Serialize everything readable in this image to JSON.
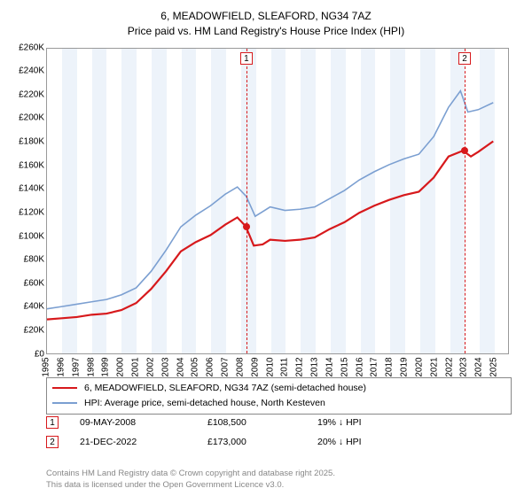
{
  "title": {
    "line1": "6, MEADOWFIELD, SLEAFORD, NG34 7AZ",
    "line2": "Price paid vs. HM Land Registry's House Price Index (HPI)",
    "fontsize": 12,
    "color": "#000000"
  },
  "chart": {
    "type": "line",
    "background_color": "#ffffff",
    "plot_border_color": "#999999",
    "band_color": "#edf3fa",
    "x": {
      "min": 1995,
      "max": 2026,
      "ticks": [
        1995,
        1996,
        1997,
        1998,
        1999,
        2000,
        2001,
        2002,
        2003,
        2004,
        2005,
        2006,
        2007,
        2008,
        2009,
        2010,
        2011,
        2012,
        2013,
        2014,
        2015,
        2016,
        2017,
        2018,
        2019,
        2020,
        2021,
        2022,
        2023,
        2024,
        2025
      ],
      "label_fontsize": 10
    },
    "y": {
      "min": 0,
      "max": 260000,
      "ticks": [
        0,
        20000,
        40000,
        60000,
        80000,
        100000,
        120000,
        140000,
        160000,
        180000,
        200000,
        220000,
        240000,
        260000
      ],
      "tick_labels": [
        "£0",
        "£20K",
        "£40K",
        "£60K",
        "£80K",
        "£100K",
        "£120K",
        "£140K",
        "£160K",
        "£180K",
        "£200K",
        "£220K",
        "£240K",
        "£260K"
      ],
      "label_fontsize": 10
    },
    "bands_starting_odd_years": true,
    "series": [
      {
        "name": "price_paid",
        "label": "6, MEADOWFIELD, SLEAFORD, NG34 7AZ (semi-detached house)",
        "color": "#d7191c",
        "line_width": 2.2,
        "points": [
          [
            1995,
            29000
          ],
          [
            1996,
            30000
          ],
          [
            1997,
            31000
          ],
          [
            1998,
            33000
          ],
          [
            1999,
            34000
          ],
          [
            2000,
            37000
          ],
          [
            2001,
            43000
          ],
          [
            2002,
            55000
          ],
          [
            2003,
            70000
          ],
          [
            2004,
            87000
          ],
          [
            2005,
            95000
          ],
          [
            2006,
            101000
          ],
          [
            2007,
            110000
          ],
          [
            2007.8,
            116000
          ],
          [
            2008.36,
            108500
          ],
          [
            2008.9,
            92000
          ],
          [
            2009.5,
            93000
          ],
          [
            2010,
            97000
          ],
          [
            2011,
            96000
          ],
          [
            2012,
            97000
          ],
          [
            2013,
            99000
          ],
          [
            2014,
            106000
          ],
          [
            2015,
            112000
          ],
          [
            2016,
            120000
          ],
          [
            2017,
            126000
          ],
          [
            2018,
            131000
          ],
          [
            2019,
            135000
          ],
          [
            2020,
            138000
          ],
          [
            2021,
            150000
          ],
          [
            2022,
            168000
          ],
          [
            2022.97,
            173000
          ],
          [
            2023.5,
            168000
          ],
          [
            2024,
            172000
          ],
          [
            2025,
            181000
          ]
        ]
      },
      {
        "name": "hpi",
        "label": "HPI: Average price, semi-detached house, North Kesteven",
        "color": "#7b9fd1",
        "line_width": 1.6,
        "points": [
          [
            1995,
            38000
          ],
          [
            1996,
            40000
          ],
          [
            1997,
            42000
          ],
          [
            1998,
            44000
          ],
          [
            1999,
            46000
          ],
          [
            2000,
            50000
          ],
          [
            2001,
            56000
          ],
          [
            2002,
            70000
          ],
          [
            2003,
            88000
          ],
          [
            2004,
            108000
          ],
          [
            2005,
            118000
          ],
          [
            2006,
            126000
          ],
          [
            2007,
            136000
          ],
          [
            2007.8,
            142000
          ],
          [
            2008.4,
            134000
          ],
          [
            2009,
            117000
          ],
          [
            2009.5,
            121000
          ],
          [
            2010,
            125000
          ],
          [
            2011,
            122000
          ],
          [
            2012,
            123000
          ],
          [
            2013,
            125000
          ],
          [
            2014,
            132000
          ],
          [
            2015,
            139000
          ],
          [
            2016,
            148000
          ],
          [
            2017,
            155000
          ],
          [
            2018,
            161000
          ],
          [
            2019,
            166000
          ],
          [
            2020,
            170000
          ],
          [
            2021,
            185000
          ],
          [
            2022,
            210000
          ],
          [
            2022.8,
            224000
          ],
          [
            2023.3,
            206000
          ],
          [
            2024,
            208000
          ],
          [
            2025,
            214000
          ]
        ]
      }
    ],
    "markers": [
      {
        "id": "1",
        "x": 2008.36,
        "y": 108500,
        "color": "#d7191c"
      },
      {
        "id": "2",
        "x": 2022.97,
        "y": 173000,
        "color": "#d7191c"
      }
    ]
  },
  "legend": {
    "rows": [
      {
        "color": "#d7191c",
        "text": "6, MEADOWFIELD, SLEAFORD, NG34 7AZ (semi-detached house)"
      },
      {
        "color": "#7b9fd1",
        "text": "HPI: Average price, semi-detached house, North Kesteven"
      }
    ]
  },
  "sales": [
    {
      "id": "1",
      "date": "09-MAY-2008",
      "price": "£108,500",
      "diff": "19% ↓ HPI",
      "color": "#d7191c"
    },
    {
      "id": "2",
      "date": "21-DEC-2022",
      "price": "£173,000",
      "diff": "20% ↓ HPI",
      "color": "#d7191c"
    }
  ],
  "footnote": {
    "line1": "Contains HM Land Registry data © Crown copyright and database right 2025.",
    "line2": "This data is licensed under the Open Government Licence v3.0."
  }
}
